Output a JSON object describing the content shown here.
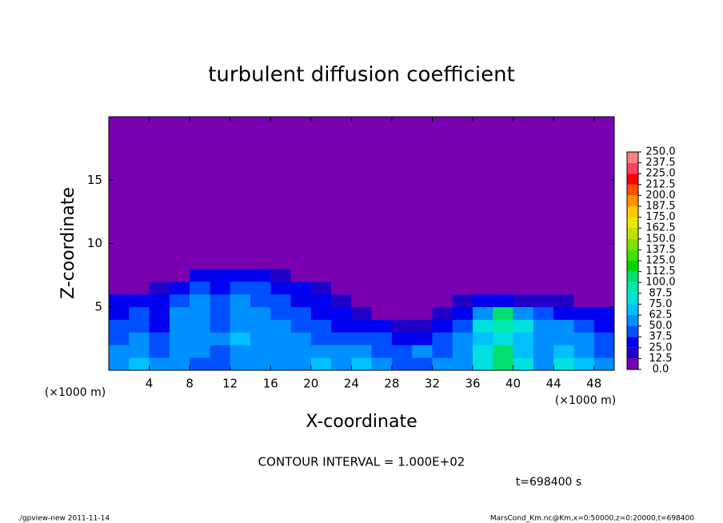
{
  "chart_data": {
    "type": "heatmap",
    "title": "turbulent diffusion coefficient",
    "xlabel": "X-coordinate",
    "ylabel": "Z-coordinate",
    "x_unit_label": "(×1000 m)",
    "xlim": [
      0,
      50
    ],
    "ylim": [
      0,
      20
    ],
    "xticks": [
      4,
      8,
      12,
      16,
      20,
      24,
      28,
      32,
      36,
      40,
      44,
      48
    ],
    "yticks": [
      5,
      10,
      15
    ],
    "x": [
      1,
      3,
      5,
      7,
      9,
      11,
      13,
      15,
      17,
      19,
      21,
      23,
      25,
      27,
      29,
      31,
      33,
      35,
      37,
      39,
      41,
      43,
      45,
      47,
      49
    ],
    "z": [
      0.5,
      1.5,
      2.5,
      3.5,
      4.5,
      5.5,
      6.5,
      7.5,
      8.5
    ],
    "values": [
      [
        55,
        65,
        50,
        55,
        45,
        40,
        50,
        60,
        55,
        60,
        65,
        60,
        65,
        50,
        40,
        45,
        50,
        60,
        80,
        110,
        75,
        60,
        80,
        70,
        55
      ],
      [
        50,
        55,
        45,
        55,
        50,
        45,
        60,
        55,
        60,
        55,
        50,
        50,
        55,
        45,
        45,
        50,
        45,
        60,
        75,
        105,
        65,
        55,
        70,
        60,
        45
      ],
      [
        45,
        50,
        40,
        60,
        55,
        50,
        65,
        60,
        55,
        50,
        45,
        40,
        45,
        40,
        30,
        35,
        40,
        55,
        70,
        80,
        70,
        50,
        60,
        55,
        40
      ],
      [
        40,
        45,
        35,
        55,
        60,
        45,
        60,
        55,
        50,
        45,
        40,
        35,
        30,
        25,
        20,
        20,
        30,
        45,
        80,
        90,
        85,
        60,
        50,
        45,
        35
      ],
      [
        35,
        40,
        30,
        50,
        55,
        40,
        55,
        50,
        45,
        40,
        35,
        25,
        15,
        10,
        10,
        10,
        20,
        35,
        60,
        100,
        60,
        45,
        35,
        30,
        25
      ],
      [
        25,
        30,
        25,
        40,
        50,
        40,
        50,
        45,
        40,
        35,
        30,
        15,
        5,
        0,
        0,
        0,
        10,
        20,
        30,
        25,
        20,
        15,
        15,
        10,
        10
      ],
      [
        0,
        10,
        15,
        25,
        40,
        35,
        45,
        40,
        35,
        30,
        20,
        5,
        0,
        0,
        0,
        0,
        0,
        0,
        0,
        0,
        0,
        0,
        0,
        0,
        0
      ],
      [
        0,
        0,
        0,
        10,
        25,
        30,
        35,
        30,
        20,
        10,
        5,
        0,
        0,
        0,
        0,
        0,
        0,
        0,
        0,
        0,
        0,
        0,
        0,
        0,
        0
      ],
      [
        0,
        0,
        0,
        0,
        5,
        10,
        10,
        5,
        0,
        0,
        0,
        0,
        0,
        0,
        0,
        0,
        0,
        0,
        0,
        0,
        0,
        0,
        0,
        0,
        0
      ]
    ],
    "background_color": "#7800b0",
    "colorbar": {
      "levels": [
        {
          "value": 0,
          "label": "0.0"
        },
        12.5,
        {
          "value": 25,
          "label": "25.0"
        },
        37.5,
        {
          "value": 50,
          "label": "50.0"
        },
        62.5,
        {
          "value": 75,
          "label": "75.0"
        },
        87.5,
        {
          "value": 100,
          "label": "100.0"
        },
        112.5,
        {
          "value": 125,
          "label": "125.0"
        },
        137.5,
        {
          "value": 150,
          "label": "150.0"
        },
        162.5,
        {
          "value": 175,
          "label": "175.0"
        },
        187.5,
        {
          "value": 200,
          "label": "200.0"
        },
        212.5,
        {
          "value": 225,
          "label": "225.0"
        },
        237.5,
        {
          "value": 250,
          "label": "250.0"
        }
      ],
      "colors": [
        "#7800b0",
        "#2000c8",
        "#0000f0",
        "#0050ff",
        "#0090ff",
        "#00c0ff",
        "#00e0e0",
        "#00e8b0",
        "#00e070",
        "#00d800",
        "#40e000",
        "#80e000",
        "#c0e000",
        "#e8e800",
        "#ffc800",
        "#ff9000",
        "#ff5000",
        "#ff0000",
        "#ff4060",
        "#ff8080"
      ]
    },
    "contour_interval": "CONTOUR INTERVAL = 1.000E+02",
    "time_label": "t=698400 s",
    "footer_left": "./gpview-new  2011-11-14",
    "footer_right": "MarsCond_Km.nc@Km,x=0:50000,z=0:20000,t=698400"
  }
}
